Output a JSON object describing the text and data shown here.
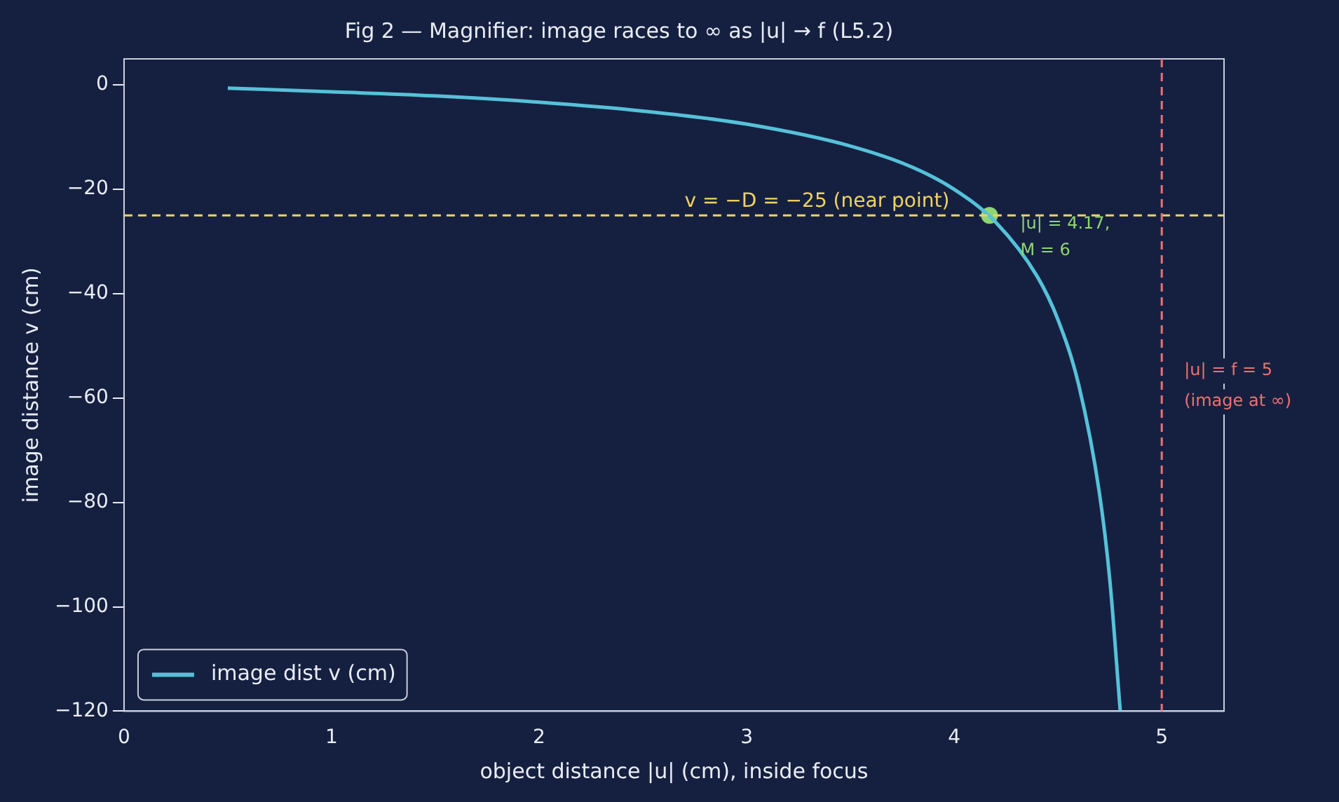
{
  "chart_data": {
    "type": "line",
    "title": "Fig 2 — Magnifier: image races to ∞ as |u| → f (L5.2)",
    "xlabel": "object distance |u| (cm), inside focus",
    "ylabel": "image distance v (cm)",
    "xlim": [
      0,
      5.3
    ],
    "xticks": [
      0,
      1,
      2,
      3,
      4,
      5
    ],
    "ylim": [
      -120,
      5
    ],
    "yticks": [
      -120,
      -100,
      -80,
      -60,
      -40,
      -20,
      0
    ],
    "grid": false,
    "legend": "bottom left",
    "series": [
      {
        "name": "image dist v (cm)",
        "color": "#56c1d9",
        "marker": "none",
        "line_style": "solid",
        "x": [
          0.5,
          1,
          1.5,
          2,
          2.5,
          3,
          3.5,
          3.8,
          4,
          4.2,
          4.4,
          4.5,
          4.6,
          4.7,
          4.75,
          4.8
        ],
        "values": [
          -0.6,
          -1.3,
          -2.1,
          -3.3,
          -5,
          -7.5,
          -11.7,
          -15.8,
          -20,
          -26.3,
          -36.7,
          -45,
          -57.5,
          -78.3,
          -95,
          -120
        ]
      },
      {
        "type": "scatter",
        "color": "#8fd672",
        "marker": "circle",
        "x": [
          4.17
        ],
        "values": [
          -25
        ]
      }
    ],
    "ref_lines": [
      {
        "axis": "y",
        "value": -25,
        "label": "v = −D = −25 (near point)",
        "color": "#f0d264",
        "line_style": "dashed"
      },
      {
        "axis": "x",
        "value": 5,
        "label": "|u| = f = 5\n(image at ∞)",
        "color": "#f07070",
        "line_style": "dashed"
      }
    ],
    "annotations": [
      {
        "text": "|u| = 4.17,\nM = 6",
        "x": 4.17,
        "y": -25
      }
    ]
  }
}
